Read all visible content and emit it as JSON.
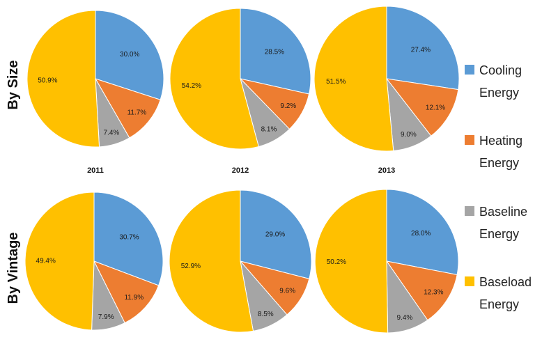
{
  "chart_data": {
    "type": "pie",
    "rows": [
      "By Size",
      "By Vintage"
    ],
    "years": [
      "2011",
      "2012",
      "2013"
    ],
    "categories": [
      "Cooling Energy",
      "Heating Energy",
      "Baseline Energy",
      "Baseload Energy"
    ],
    "legend": [
      {
        "line1": "Cooling",
        "line2": "Energy",
        "color": "#5B9BD5"
      },
      {
        "line1": "Heating",
        "line2": "Energy",
        "color": "#ED7D31"
      },
      {
        "line1": "Baseline",
        "line2": "Energy",
        "color": "#A5A5A5"
      },
      {
        "line1": "Baseload",
        "line2": "Energy",
        "color": "#FFC000"
      }
    ],
    "legend_position": "right",
    "pies": [
      {
        "row": "By Size",
        "year": "2011",
        "values": [
          30.0,
          11.7,
          7.4,
          50.9
        ],
        "labels": [
          "30.0%",
          "11.7%",
          "7.4%",
          "50.9%"
        ]
      },
      {
        "row": "By Size",
        "year": "2012",
        "values": [
          28.5,
          9.2,
          8.1,
          54.2
        ],
        "labels": [
          "28.5%",
          "9.2%",
          "8.1%",
          "54.2%"
        ]
      },
      {
        "row": "By Size",
        "year": "2013",
        "values": [
          27.4,
          12.1,
          9.0,
          51.5
        ],
        "labels": [
          "27.4%",
          "12.1%",
          "9.0%",
          "51.5%"
        ]
      },
      {
        "row": "By Vintage",
        "year": "2011",
        "values": [
          30.7,
          11.9,
          7.9,
          49.4
        ],
        "labels": [
          "30.7%",
          "11.9%",
          "7.9%",
          "49.4%"
        ]
      },
      {
        "row": "By Vintage",
        "year": "2012",
        "values": [
          29.0,
          9.6,
          8.5,
          52.9
        ],
        "labels": [
          "29.0%",
          "9.6%",
          "8.5%",
          "52.9%"
        ]
      },
      {
        "row": "By Vintage",
        "year": "2013",
        "values": [
          28.0,
          12.3,
          9.4,
          50.2
        ],
        "labels": [
          "28.0%",
          "12.3%",
          "9.4%",
          "50.2%"
        ]
      }
    ]
  }
}
